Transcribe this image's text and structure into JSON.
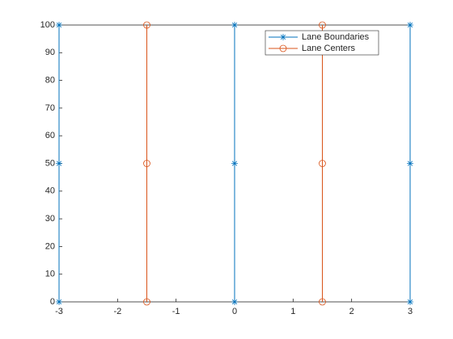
{
  "chart_data": {
    "type": "line",
    "series": [
      {
        "name": "Lane Boundaries",
        "color": "#0072bd",
        "marker": "asterisk",
        "x": [
          -3,
          -3,
          -3,
          null,
          0,
          0,
          0,
          null,
          3,
          3,
          3
        ],
        "values": [
          0,
          50,
          100,
          null,
          0,
          50,
          100,
          null,
          0,
          50,
          100
        ]
      },
      {
        "name": "Lane Centers",
        "color": "#d95319",
        "marker": "circle",
        "x": [
          -1.5,
          -1.5,
          -1.5,
          null,
          1.5,
          1.5,
          1.5
        ],
        "values": [
          0,
          50,
          100,
          null,
          0,
          50,
          100
        ]
      }
    ],
    "xlim": [
      -3,
      3
    ],
    "xticks": [
      -3,
      -2,
      -1,
      0,
      1,
      2,
      3
    ],
    "ylim": [
      0,
      100
    ],
    "yticks": [
      0,
      10,
      20,
      30,
      40,
      50,
      60,
      70,
      80,
      90,
      100
    ],
    "grid": false,
    "legend": "northeast"
  }
}
